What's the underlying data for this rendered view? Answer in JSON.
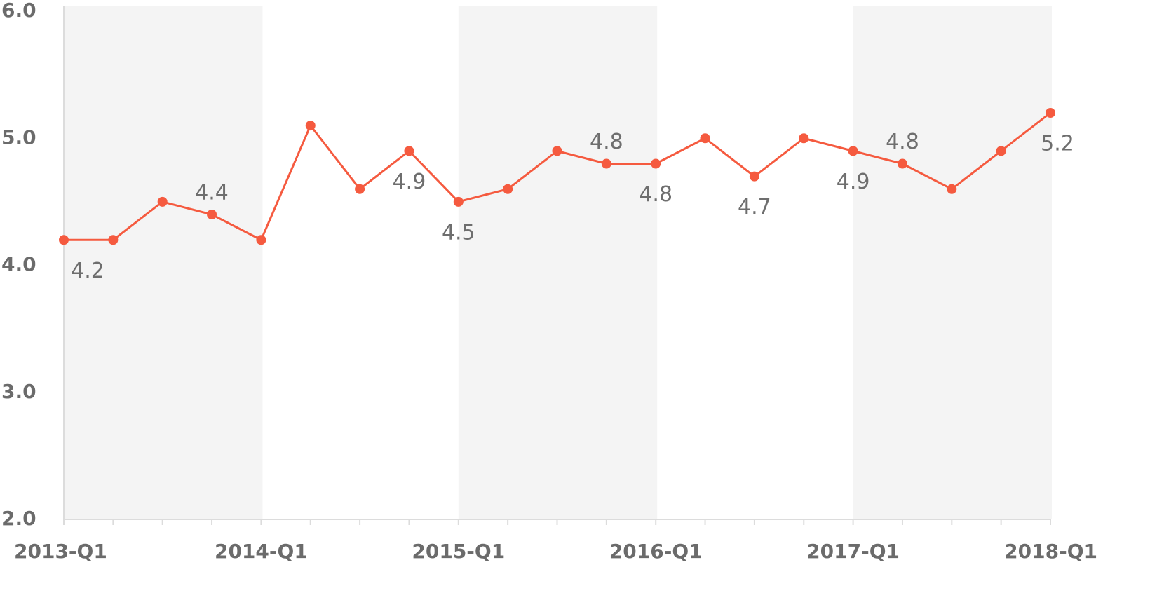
{
  "chart_data": {
    "type": "line",
    "categories": [
      "2013-Q1",
      null,
      null,
      null,
      "2014-Q1",
      null,
      null,
      null,
      "2015-Q1",
      null,
      null,
      null,
      "2016-Q1",
      null,
      null,
      null,
      "2017-Q1",
      null,
      null,
      null,
      "2018-Q1"
    ],
    "series": [
      {
        "color": "#f55a3f",
        "values": [
          4.2,
          4.2,
          4.5,
          4.4,
          4.2,
          5.1,
          4.6,
          4.9,
          4.5,
          4.6,
          4.9,
          4.8,
          4.8,
          5.0,
          4.7,
          5.0,
          4.9,
          4.8,
          4.6,
          4.9,
          5.2
        ],
        "value_labels": [
          "4.2",
          null,
          null,
          "4.4",
          null,
          null,
          null,
          "4.9",
          "4.5",
          null,
          null,
          "4.8",
          "4.8",
          null,
          "4.7",
          null,
          "4.9",
          "4.8",
          null,
          null,
          "5.2"
        ]
      }
    ],
    "ylim": [
      2.0,
      6.0
    ],
    "yticks": [
      {
        "value": 2,
        "label": "2.0"
      },
      {
        "value": 3,
        "label": "3.0"
      },
      {
        "value": 4,
        "label": "4.0"
      },
      {
        "value": 5,
        "label": "5.0"
      },
      {
        "value": 6,
        "label": "6.0"
      }
    ],
    "grid": false
  }
}
